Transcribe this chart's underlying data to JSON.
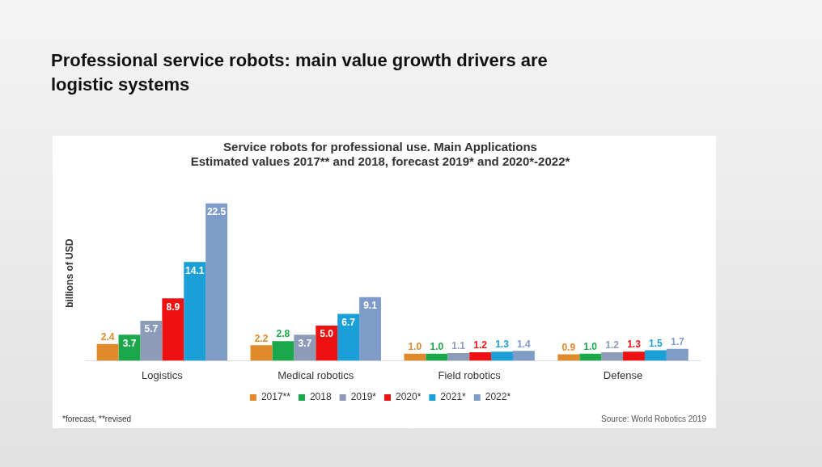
{
  "chart_data": {
    "type": "bar",
    "title": "Professional service robots: main value growth drivers are logistic systems",
    "subtitle": "Service robots for professional use. Main Applications\nEstimated values 2017** and 2018, forecast 2019* and 2020*-2022*",
    "ylabel": "billions of USD",
    "categories": [
      "Logistics",
      "Medical robotics",
      "Field robotics",
      "Defense"
    ],
    "series": [
      {
        "name": "2017**",
        "color": "#e08a2c",
        "values": [
          2.4,
          2.2,
          1,
          0.9
        ],
        "value_labels": [
          "2.4",
          "2.2",
          "1.0",
          "0.9"
        ]
      },
      {
        "name": "2018",
        "color": "#1aa84a",
        "values": [
          3.7,
          2.8,
          1,
          1
        ],
        "value_labels": [
          "3.7",
          "2.8",
          "1.0",
          "1.0"
        ]
      },
      {
        "name": "2019*",
        "color": "#8c9cb8",
        "values": [
          5.7,
          3.7,
          1.1,
          1.2
        ],
        "value_labels": [
          "5.7",
          "3.7",
          "1.1",
          "1.2"
        ]
      },
      {
        "name": "2020*",
        "color": "#ee1111",
        "values": [
          8.9,
          5,
          1.2,
          1.3
        ],
        "value_labels": [
          "8.9",
          "5.0",
          "1.2",
          "1.3"
        ]
      },
      {
        "name": "2021*",
        "color": "#1a9fd6",
        "values": [
          14.1,
          6.7,
          1.3,
          1.5
        ],
        "value_labels": [
          "14.1",
          "6.7",
          "1.3",
          "1.5"
        ]
      },
      {
        "name": "2022*",
        "color": "#7f9cc8",
        "values": [
          22.5,
          9.1,
          1.4,
          1.7
        ],
        "value_labels": [
          "22.5",
          "9.1",
          "1.4",
          "1.7"
        ]
      }
    ],
    "legend": "bottom",
    "tick_labels": "x",
    "annotations": [
      "*forecast, **revised",
      "Source: World Robotics 2019"
    ]
  }
}
